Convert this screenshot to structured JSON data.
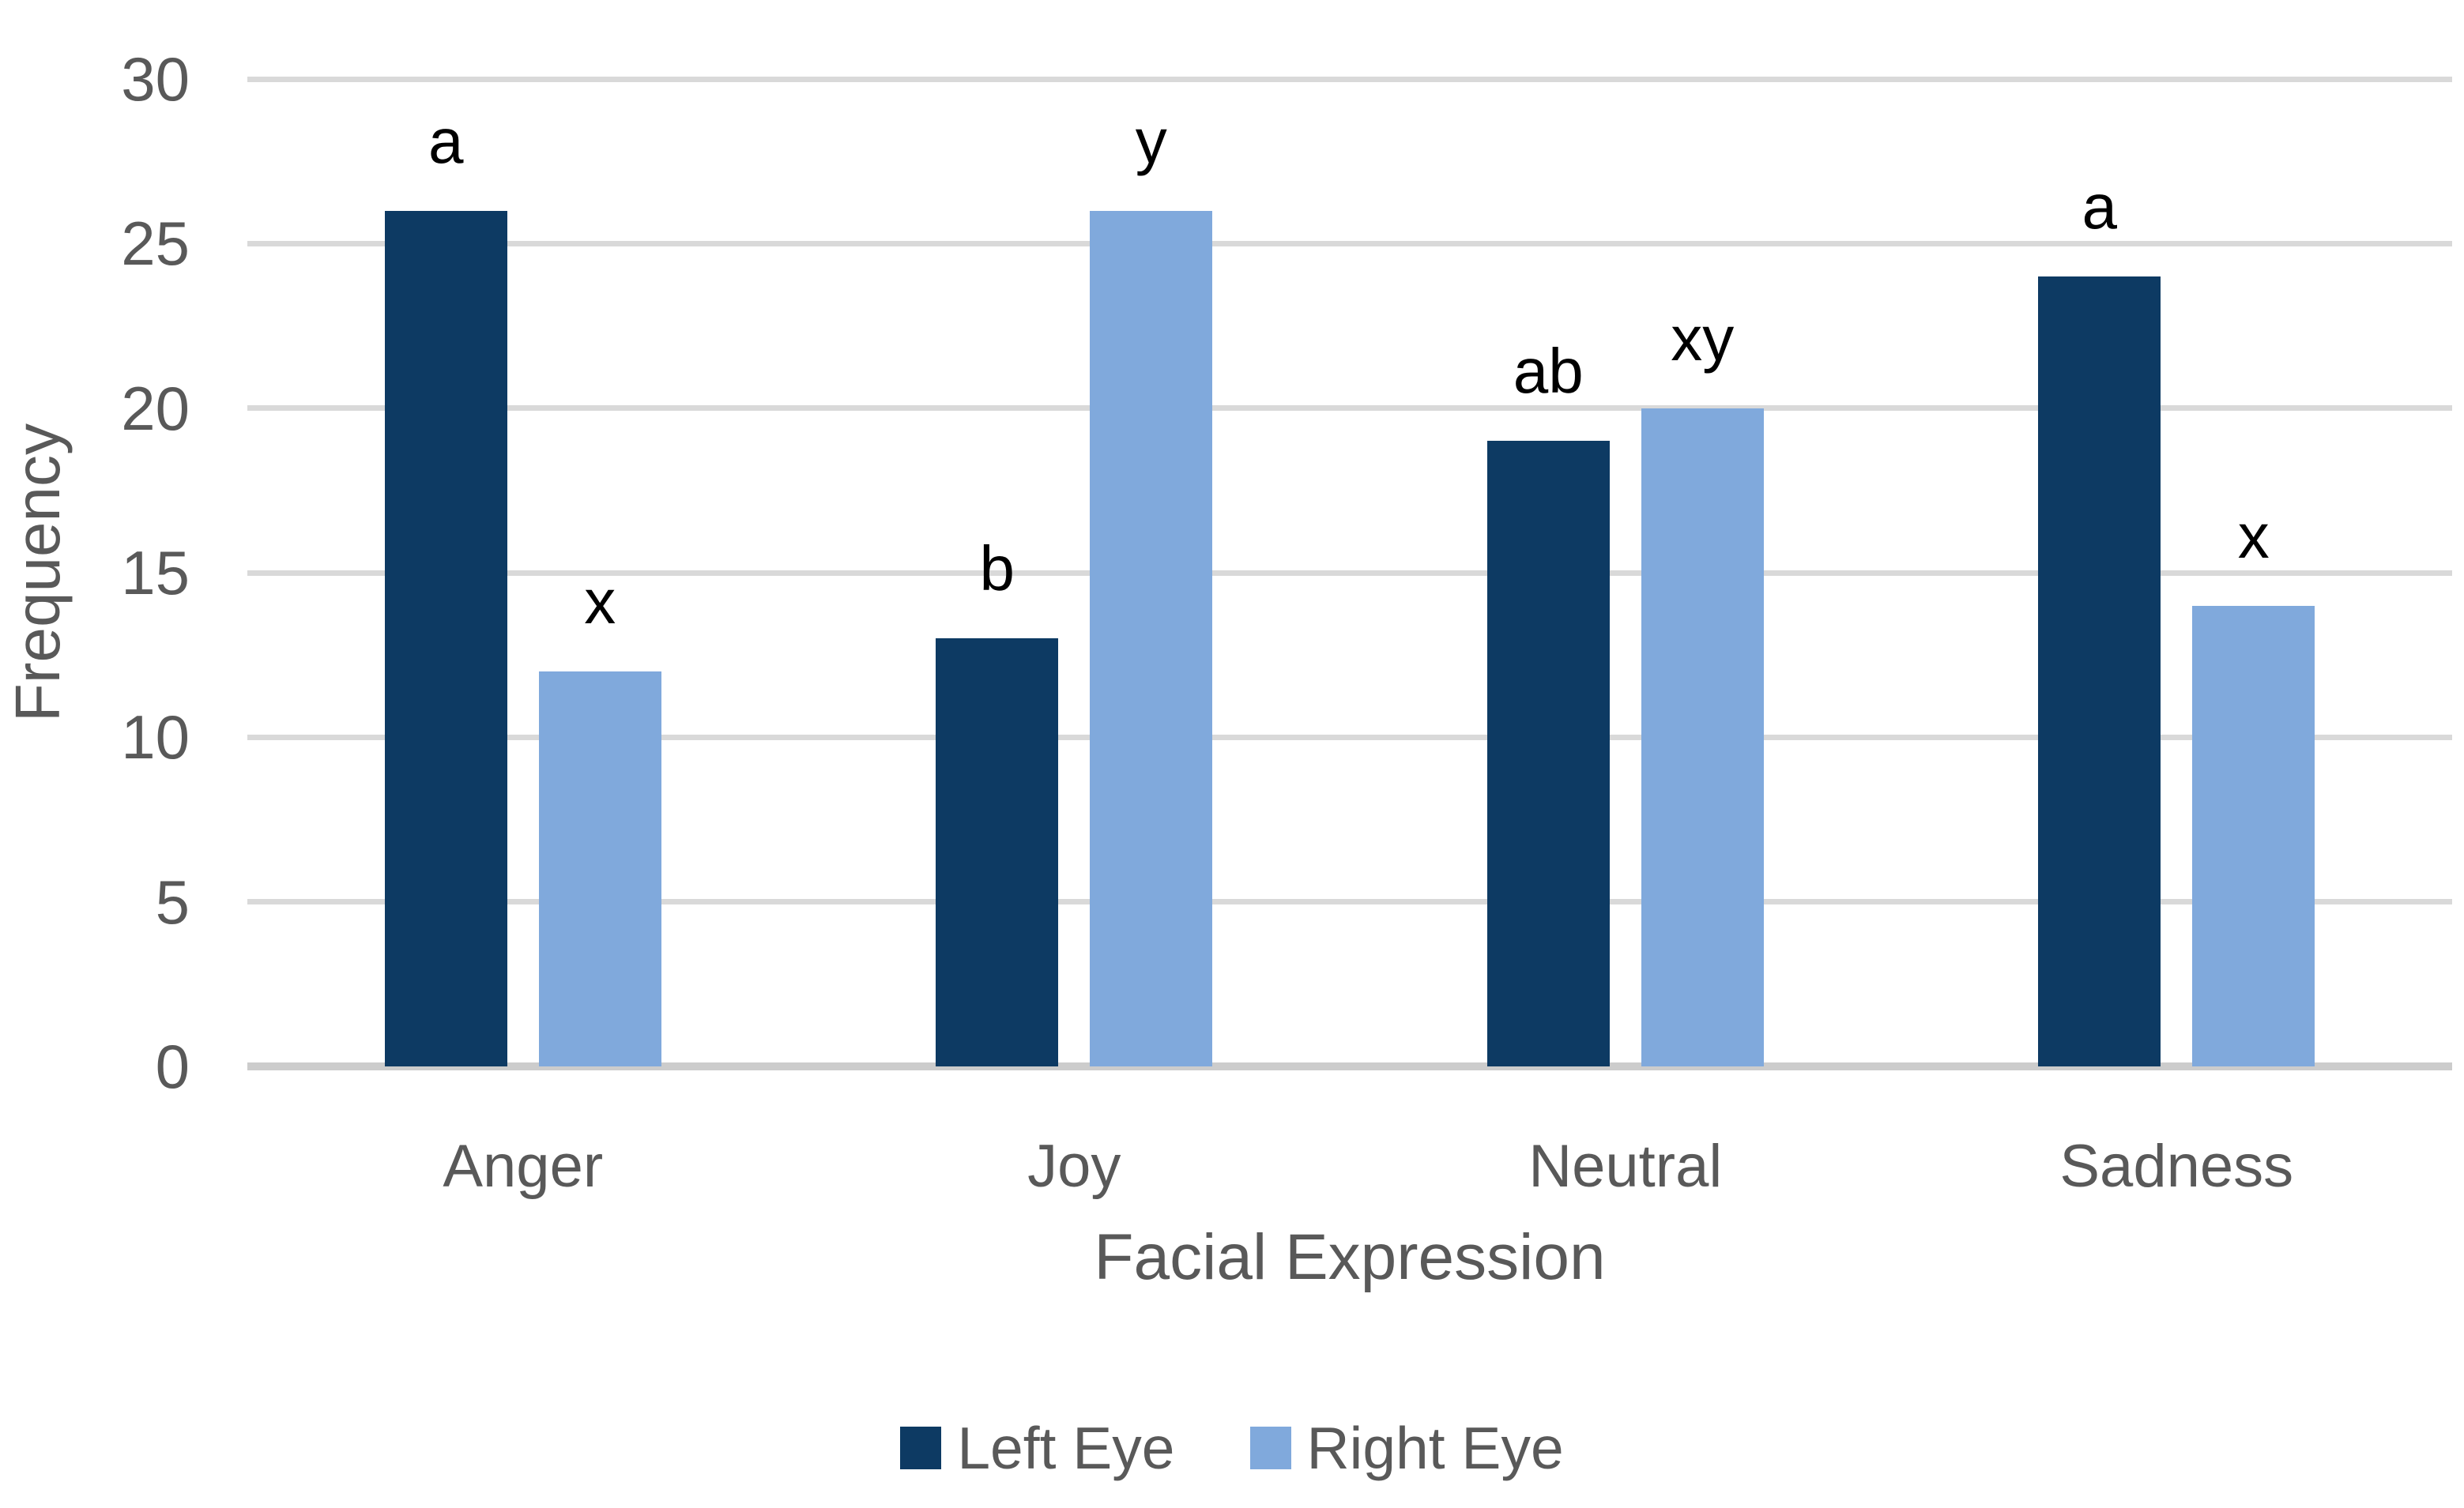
{
  "chart_data": {
    "type": "bar",
    "title": "",
    "xlabel": "Facial Expression",
    "ylabel": "Frequency",
    "categories": [
      "Anger",
      "Joy",
      "Neutral",
      "Sadness"
    ],
    "series": [
      {
        "name": "Left Eye",
        "color": "#0d3a63",
        "values": [
          26,
          13,
          19,
          24
        ],
        "annotations": [
          "a",
          "b",
          "ab",
          "a"
        ]
      },
      {
        "name": "Right Eye",
        "color": "#80a9dc",
        "values": [
          12,
          26,
          20,
          14
        ],
        "annotations": [
          "x",
          "y",
          "xy",
          "x"
        ]
      }
    ],
    "ylim": [
      0,
      30
    ],
    "yticks": [
      0,
      5,
      10,
      15,
      20,
      25,
      30
    ],
    "grid": true,
    "legend_position": "bottom"
  },
  "colors": {
    "background": "#ffffff",
    "axis_text": "#595959",
    "annotation_text": "#000000",
    "gridline": "#d9d9d9",
    "axis_line": "#cccccc"
  }
}
